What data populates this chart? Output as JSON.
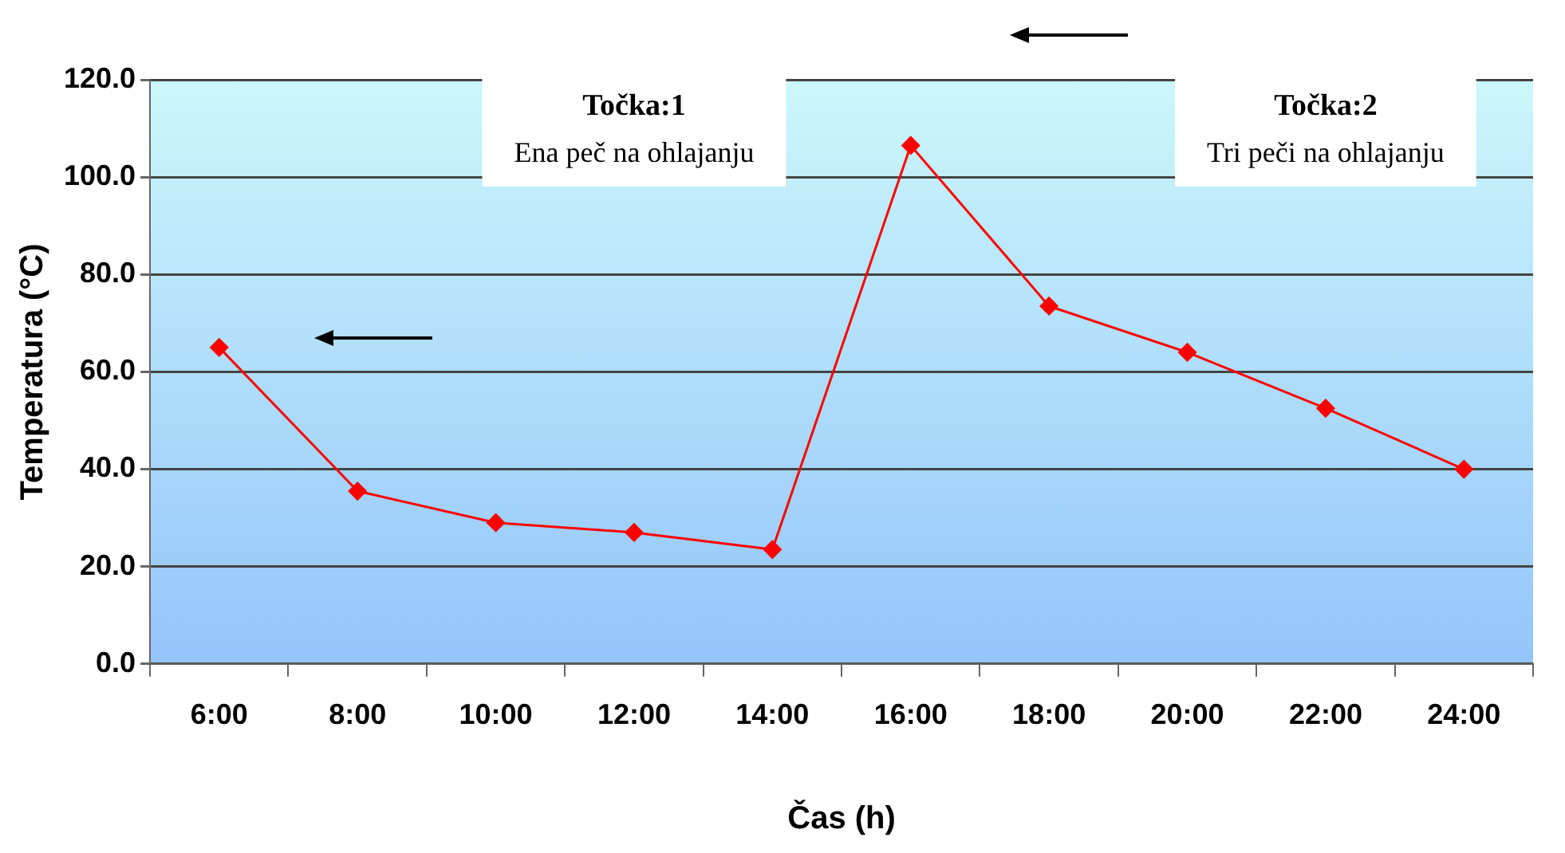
{
  "chart_data": {
    "type": "line",
    "xlabel": "Čas (h)",
    "ylabel": "Temperatura (°C)",
    "categories": [
      "6:00",
      "8:00",
      "10:00",
      "12:00",
      "14:00",
      "16:00",
      "18:00",
      "20:00",
      "22:00",
      "24:00"
    ],
    "series": [
      {
        "color": "#ff0000",
        "values": [
          65,
          35.5,
          29,
          27,
          23.5,
          106.5,
          73.5,
          64,
          52.5,
          40
        ]
      }
    ],
    "ylim": [
      0,
      120
    ],
    "yticks": [
      {
        "value": 0,
        "label": "0.0"
      },
      {
        "value": 20,
        "label": "20.0"
      },
      {
        "value": 40,
        "label": "40.0"
      },
      {
        "value": 60,
        "label": "60.0"
      },
      {
        "value": 80,
        "label": "80.0"
      },
      {
        "value": 100,
        "label": "100.0"
      },
      {
        "value": 120,
        "label": "120.0"
      }
    ],
    "grid": "y",
    "legend": false,
    "marker": "diamond",
    "line_style": "solid",
    "annotations": [
      "Točka:1",
      "Ena peč na ohlajanju",
      "Točka:2",
      "Tri peči na ohlajanju"
    ]
  }
}
